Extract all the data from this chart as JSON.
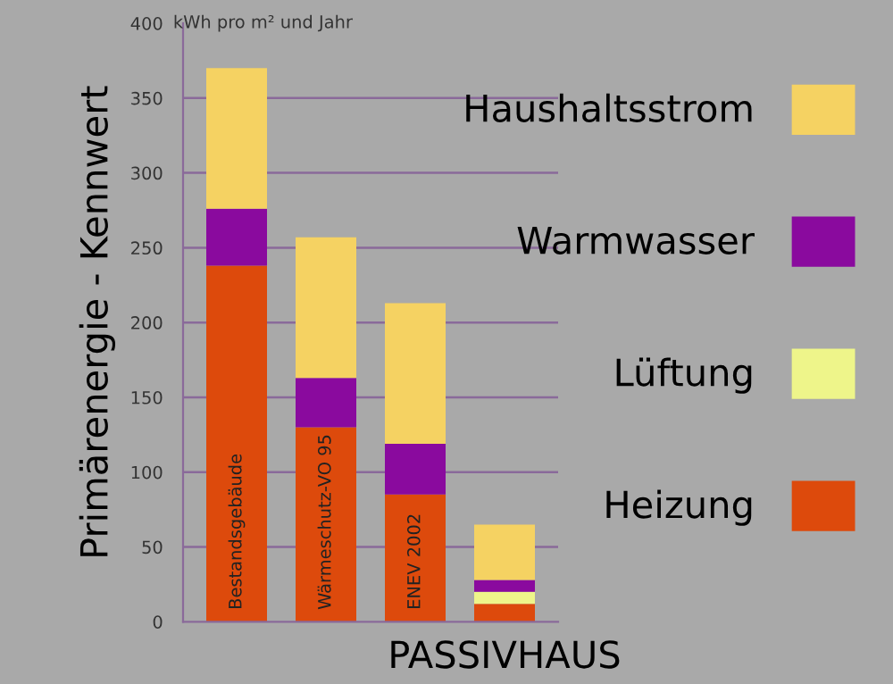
{
  "chart_data": {
    "type": "bar",
    "stacked": true,
    "ylabel": "Primärenergie - Kennwert",
    "annotations": [
      "kWh pro m² und Jahr"
    ],
    "categories": [
      "Bestandsgebäude",
      "Wärmeschutz-VO 95",
      "ENEV 2002",
      "PASSIVHAUS"
    ],
    "series": [
      {
        "name": "Heizung",
        "color": "#dd4a0c",
        "values": [
          238,
          130,
          85,
          12
        ]
      },
      {
        "name": "Lüftung",
        "color": "#eef58a",
        "values": [
          0,
          0,
          0,
          8
        ]
      },
      {
        "name": "Warmwasser",
        "color": "#8a0a9e",
        "values": [
          38,
          33,
          34,
          8
        ]
      },
      {
        "name": "Haushaltsstrom",
        "color": "#f5d262",
        "values": [
          94,
          94,
          94,
          37
        ]
      }
    ],
    "ylim": [
      0,
      400
    ],
    "yticks": [
      0,
      50,
      100,
      150,
      200,
      250,
      300,
      350,
      400
    ],
    "grid": "y",
    "legend": "right"
  }
}
